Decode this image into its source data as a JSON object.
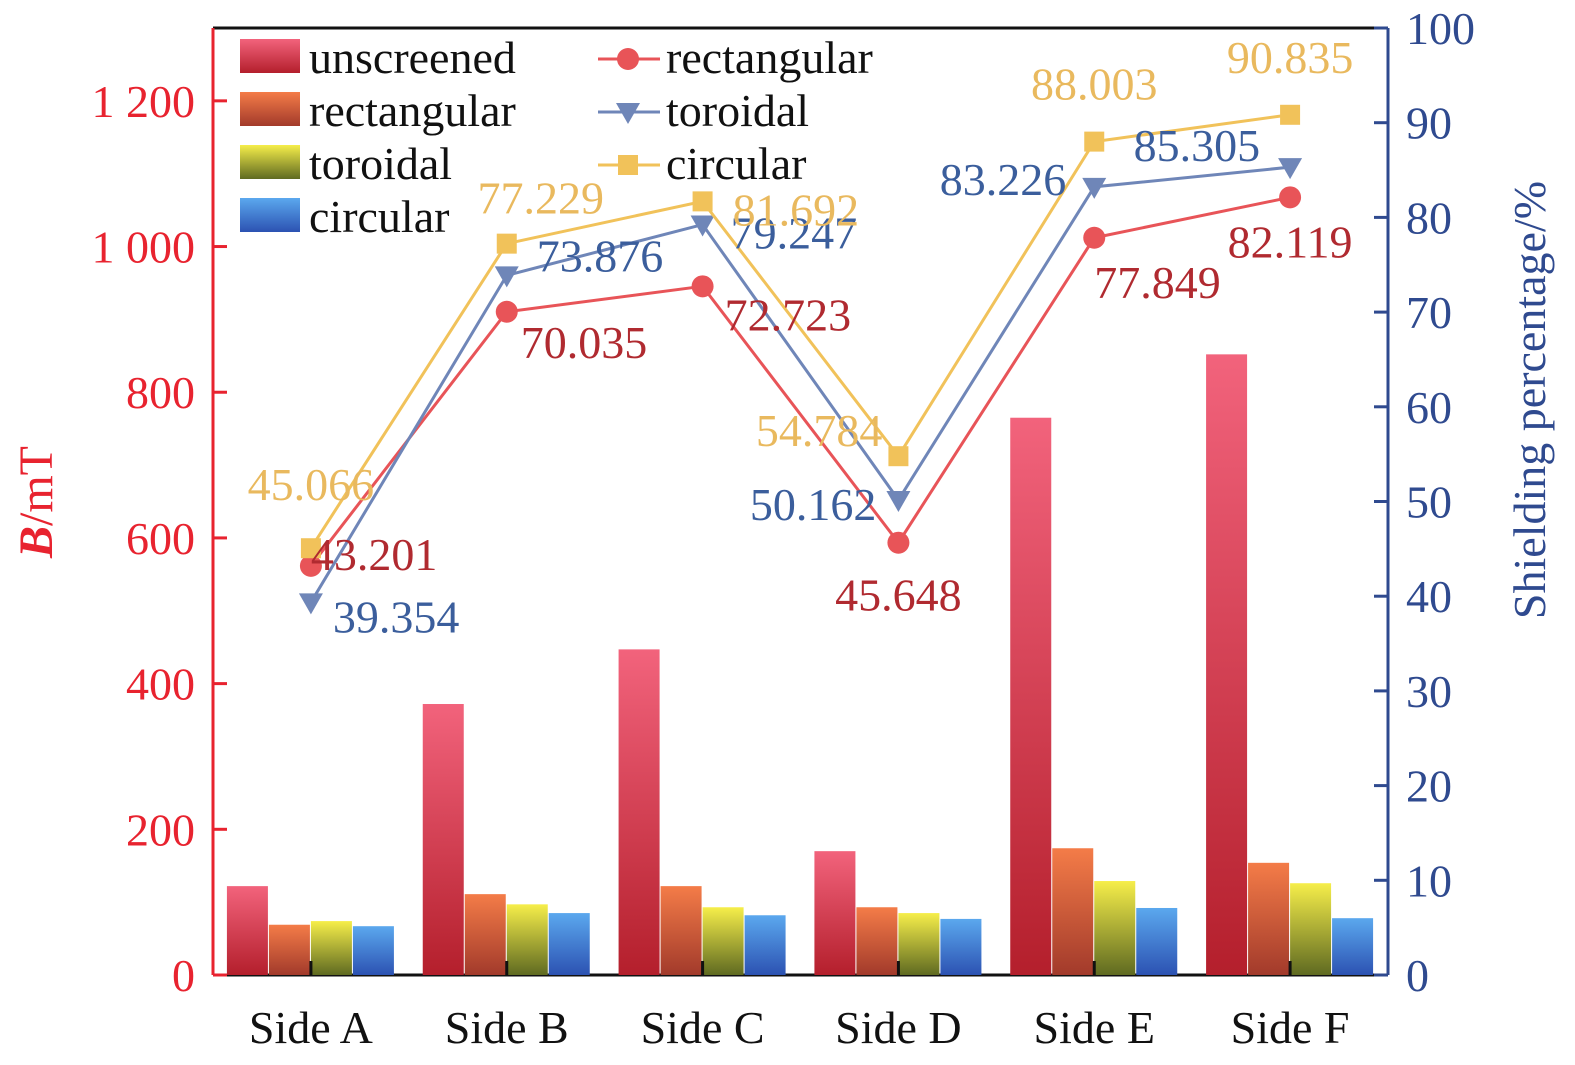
{
  "chart_data": {
    "type": "bar",
    "categories": [
      "Side A",
      "Side B",
      "Side C",
      "Side D",
      "Side E",
      "Side F"
    ],
    "ylabel_left": {
      "italic": "B",
      "rest": "/mT"
    },
    "ylabel_right": "Shielding percentage/%",
    "ylim_left": [
      0,
      1300
    ],
    "ylim_right": [
      0,
      100
    ],
    "yticks_left": [
      {
        "value": 0,
        "label": "0"
      },
      {
        "value": 200,
        "label": "200"
      },
      {
        "value": 400,
        "label": "400"
      },
      {
        "value": 600,
        "label": "600"
      },
      {
        "value": 800,
        "label": "800"
      },
      {
        "value": 1000,
        "label": "1 000"
      },
      {
        "value": 1200,
        "label": "1 200"
      }
    ],
    "yticks_right": [
      {
        "value": 0,
        "label": "0"
      },
      {
        "value": 10,
        "label": "10"
      },
      {
        "value": 20,
        "label": "20"
      },
      {
        "value": 30,
        "label": "30"
      },
      {
        "value": 40,
        "label": "40"
      },
      {
        "value": 50,
        "label": "50"
      },
      {
        "value": 60,
        "label": "60"
      },
      {
        "value": 70,
        "label": "70"
      },
      {
        "value": 80,
        "label": "80"
      },
      {
        "value": 90,
        "label": "90"
      },
      {
        "value": 100,
        "label": "100"
      }
    ],
    "bar_series": [
      {
        "name": "unscreened",
        "values": [
          122,
          372,
          447,
          170,
          765,
          852
        ],
        "color_top": "#f2637c",
        "color_bottom": "#b41f2c"
      },
      {
        "name": "rectangular",
        "values": [
          69,
          111,
          122,
          93,
          174,
          154
        ],
        "color_top": "#f47c48",
        "color_bottom": "#a23a2b"
      },
      {
        "name": "toroidal",
        "values": [
          74,
          97,
          93,
          85,
          129,
          126
        ],
        "color_top": "#f6ee4a",
        "color_bottom": "#5f6a21"
      },
      {
        "name": "circular",
        "values": [
          67,
          85,
          82,
          77,
          92,
          78
        ],
        "color_top": "#5ba8ee",
        "color_bottom": "#2c52b2"
      }
    ],
    "line_series": [
      {
        "name": "rectangular",
        "marker": "circle",
        "color": "#e85458",
        "label_color": "#b02a30",
        "values": [
          43.201,
          70.035,
          72.723,
          45.648,
          77.849,
          82.119
        ],
        "labels": [
          "43.201",
          "70.035",
          "72.723",
          "45.648",
          "77.849",
          "82.119"
        ]
      },
      {
        "name": "toroidal",
        "marker": "triangle-down",
        "color": "#6f86b8",
        "label_color": "#3b5e9c",
        "values": [
          39.354,
          73.876,
          79.247,
          50.162,
          83.226,
          85.305
        ],
        "labels": [
          "39.354",
          "73.876",
          "79.247",
          "50.162",
          "83.226",
          "85.305"
        ]
      },
      {
        "name": "circular",
        "marker": "square",
        "color": "#f1c25a",
        "label_color": "#e9b95e",
        "values": [
          45.066,
          77.229,
          81.692,
          54.784,
          88.003,
          90.835
        ],
        "labels": [
          "45.066",
          "77.229",
          "81.692",
          "54.784",
          "88.003",
          "90.835"
        ]
      }
    ],
    "colors": {
      "left_axis": "#e8232f",
      "right_axis": "#2f4a8f",
      "frame": "#111111"
    },
    "grid": false,
    "legend_position": "top-left"
  }
}
